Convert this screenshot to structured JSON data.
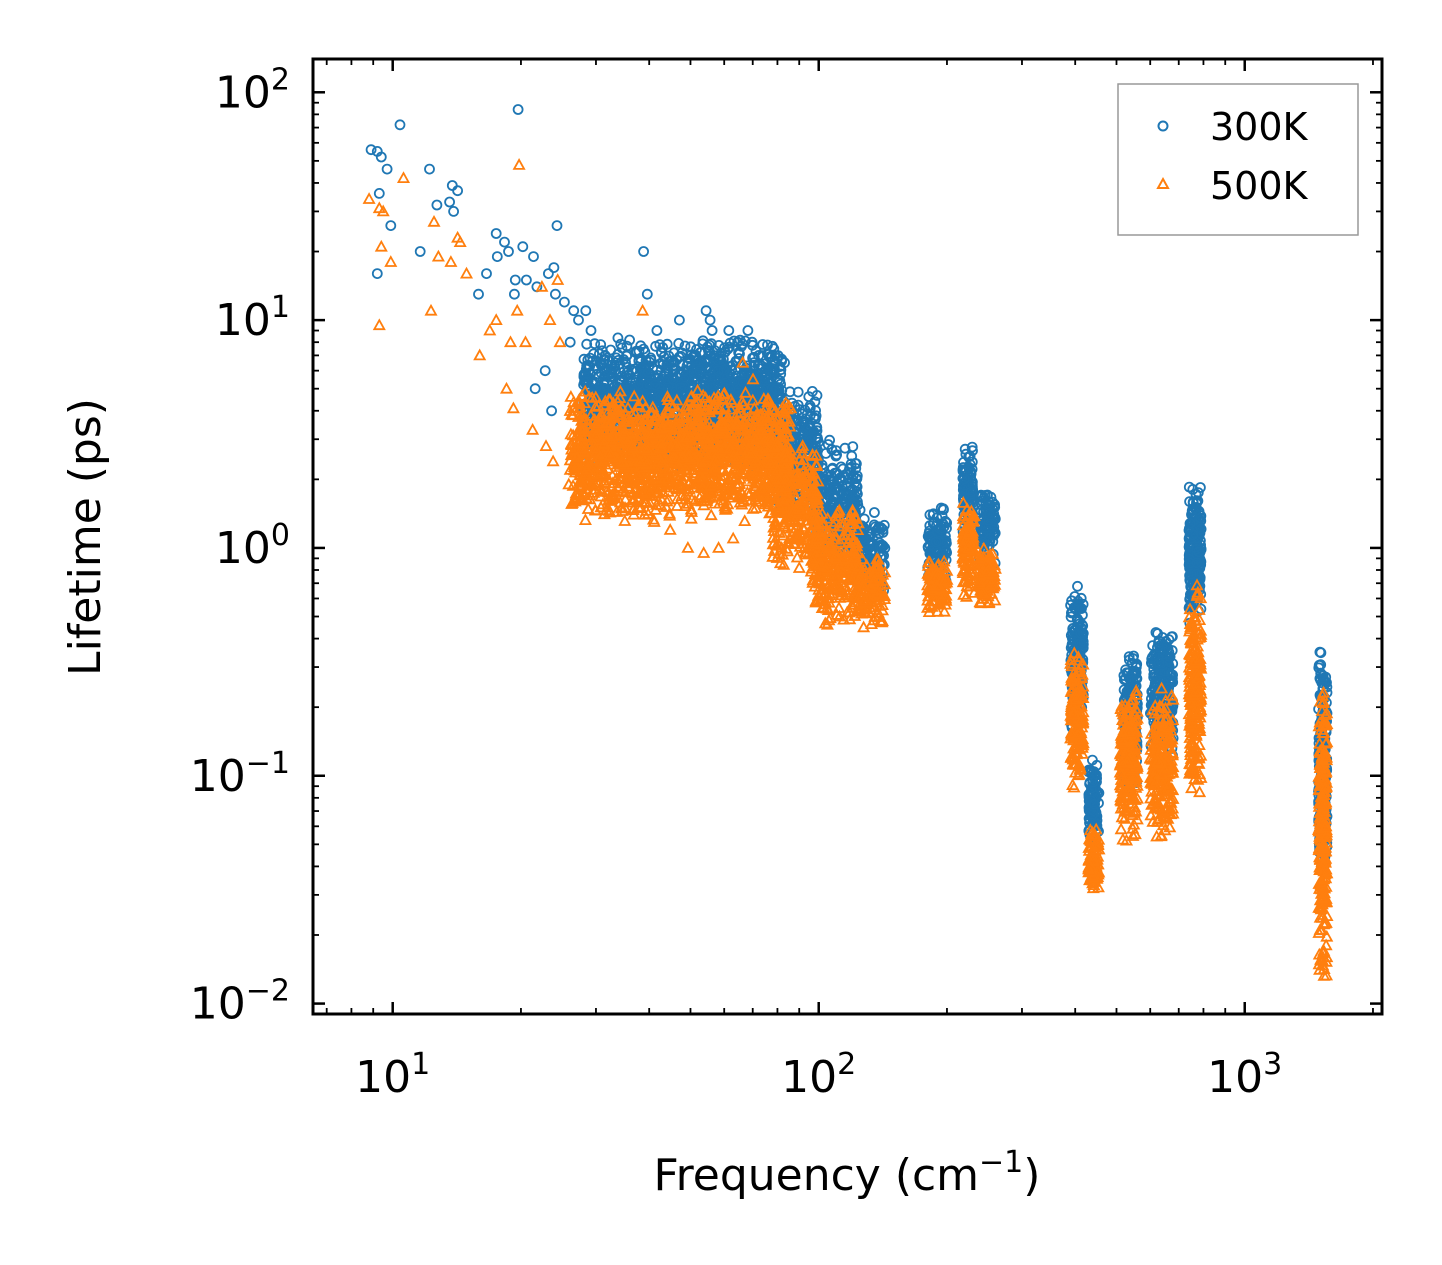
{
  "chart_data": {
    "type": "scatter",
    "xscale": "log",
    "yscale": "log",
    "xlim": [
      6.5,
      2100
    ],
    "ylim": [
      0.009,
      140
    ],
    "x_ticks": [
      {
        "value": 10,
        "base": "10",
        "exp": "1"
      },
      {
        "value": 100,
        "base": "10",
        "exp": "2"
      },
      {
        "value": 1000,
        "base": "10",
        "exp": "3"
      }
    ],
    "y_ticks": [
      {
        "value": 0.01,
        "base": "10",
        "exp": "−2"
      },
      {
        "value": 0.1,
        "base": "10",
        "exp": "−1"
      },
      {
        "value": 1,
        "base": "10",
        "exp": "0"
      },
      {
        "value": 10,
        "base": "10",
        "exp": "1"
      },
      {
        "value": 100,
        "base": "10",
        "exp": "2"
      }
    ],
    "xlabel": {
      "main": "Frequency (cm",
      "sup": "−1",
      "end": ")"
    },
    "ylabel": "Lifetime (ps)",
    "legend_position": "top-right",
    "series": [
      {
        "name": "300K",
        "marker": "circle",
        "color": "#1f77b4",
        "outliers": [
          [
            8.9,
            56
          ],
          [
            9.2,
            55
          ],
          [
            9.4,
            52
          ],
          [
            9.7,
            46
          ],
          [
            9.9,
            26
          ],
          [
            10.4,
            72
          ],
          [
            9.3,
            36
          ],
          [
            9.2,
            16
          ],
          [
            12.2,
            46
          ],
          [
            12.7,
            32
          ],
          [
            11.6,
            20
          ],
          [
            13.6,
            33
          ],
          [
            13.8,
            39
          ],
          [
            14.2,
            37
          ],
          [
            13.9,
            30
          ],
          [
            15.9,
            13
          ],
          [
            16.6,
            16
          ],
          [
            17.5,
            24
          ],
          [
            17.6,
            19
          ],
          [
            18.3,
            22
          ],
          [
            18.7,
            20
          ],
          [
            19.7,
            84
          ],
          [
            19.4,
            15
          ],
          [
            19.3,
            13
          ],
          [
            20.2,
            21
          ],
          [
            20.6,
            15
          ],
          [
            21.8,
            14
          ],
          [
            21.4,
            19
          ],
          [
            23.2,
            16
          ],
          [
            23.9,
            17
          ],
          [
            24.3,
            26
          ],
          [
            24.1,
            13
          ],
          [
            22.8,
            6
          ],
          [
            21.6,
            5
          ],
          [
            23.6,
            4
          ],
          [
            25.3,
            12
          ],
          [
            26.6,
            11
          ],
          [
            26.1,
            8
          ],
          [
            27.3,
            10
          ],
          [
            28.4,
            11
          ],
          [
            29.2,
            9
          ],
          [
            30.1,
            4
          ],
          [
            31.5,
            7
          ],
          [
            33.2,
            6
          ],
          [
            36.5,
            5
          ],
          [
            38.8,
            20
          ],
          [
            39.6,
            13
          ],
          [
            41.7,
            9
          ],
          [
            44.3,
            6
          ],
          [
            47.1,
            10
          ],
          [
            51.5,
            7
          ],
          [
            54.4,
            11
          ],
          [
            55.6,
            10
          ],
          [
            56.2,
            9
          ],
          [
            58.1,
            6
          ],
          [
            61.5,
            9
          ],
          [
            64.5,
            8
          ],
          [
            68.2,
            9
          ],
          [
            72.3,
            7
          ],
          [
            79.5,
            5
          ],
          [
            83.1,
            6.5
          ],
          [
            86.6,
            4
          ],
          [
            91.9,
            3
          ],
          [
            97.7,
            2.5
          ],
          [
            103,
            2
          ]
        ],
        "clusters": [
          [
            28,
            82,
            2.2,
            8.5,
            1600
          ],
          [
            80,
            100,
            1.4,
            5.0,
            260
          ],
          [
            98,
            124,
            0.8,
            3.0,
            280
          ],
          [
            124,
            143,
            0.6,
            1.5,
            120
          ],
          [
            180,
            200,
            0.7,
            1.6,
            110
          ],
          [
            218,
            230,
            1.0,
            2.9,
            100
          ],
          [
            238,
            260,
            0.8,
            1.8,
            100
          ],
          [
            390,
            418,
            0.16,
            0.72,
            160
          ],
          [
            430,
            455,
            0.05,
            0.12,
            90
          ],
          [
            520,
            560,
            0.08,
            0.38,
            200
          ],
          [
            600,
            680,
            0.12,
            0.45,
            220
          ],
          [
            740,
            790,
            0.45,
            1.9,
            220
          ],
          [
            1490,
            1560,
            0.03,
            0.38,
            220
          ]
        ]
      },
      {
        "name": "500K",
        "marker": "triangle",
        "color": "#ff7f0e",
        "outliers": [
          [
            8.8,
            34
          ],
          [
            9.3,
            31
          ],
          [
            9.5,
            30
          ],
          [
            9.4,
            21
          ],
          [
            9.3,
            9.5
          ],
          [
            9.9,
            18
          ],
          [
            10.6,
            42
          ],
          [
            12.3,
            11
          ],
          [
            12.8,
            19
          ],
          [
            12.5,
            27
          ],
          [
            13.7,
            18
          ],
          [
            14.2,
            23
          ],
          [
            14.4,
            22
          ],
          [
            14.9,
            16
          ],
          [
            16.0,
            7
          ],
          [
            16.9,
            9
          ],
          [
            17.5,
            10
          ],
          [
            18.5,
            5
          ],
          [
            19.2,
            4.1
          ],
          [
            18.9,
            8
          ],
          [
            19.6,
            11
          ],
          [
            19.8,
            48
          ],
          [
            20.5,
            8
          ],
          [
            21.3,
            3.3
          ],
          [
            22.4,
            14
          ],
          [
            23.4,
            10
          ],
          [
            24.4,
            15
          ],
          [
            24.7,
            8
          ],
          [
            22.9,
            2.8
          ],
          [
            23.8,
            2.4
          ],
          [
            25.9,
            1.9
          ],
          [
            27.1,
            2.5
          ],
          [
            28.6,
            2.2
          ],
          [
            29.8,
            1.8
          ],
          [
            32.4,
            1.7
          ],
          [
            35.1,
            1.5
          ],
          [
            36.8,
            1.4
          ],
          [
            38.6,
            11
          ],
          [
            41.1,
            1.3
          ],
          [
            44.8,
            1.2
          ],
          [
            49.3,
            1.0
          ],
          [
            53.7,
            0.95
          ],
          [
            58.2,
            1.0
          ],
          [
            63.0,
            1.1
          ],
          [
            66.3,
            6.5
          ],
          [
            70.1,
            5.5
          ]
        ],
        "clusters": [
          [
            26,
            86,
            1.3,
            5.0,
            1600
          ],
          [
            78,
            100,
            0.8,
            3.0,
            260
          ],
          [
            96,
            124,
            0.45,
            1.6,
            300
          ],
          [
            124,
            143,
            0.44,
            0.95,
            120
          ],
          [
            180,
            200,
            0.5,
            0.9,
            110
          ],
          [
            218,
            232,
            0.6,
            1.6,
            110
          ],
          [
            238,
            260,
            0.55,
            1.0,
            110
          ],
          [
            390,
            418,
            0.08,
            0.38,
            170
          ],
          [
            430,
            455,
            0.03,
            0.06,
            90
          ],
          [
            510,
            560,
            0.05,
            0.25,
            220
          ],
          [
            600,
            680,
            0.05,
            0.25,
            220
          ],
          [
            740,
            790,
            0.08,
            0.7,
            220
          ],
          [
            1490,
            1560,
            0.012,
            0.28,
            240
          ]
        ]
      }
    ]
  }
}
